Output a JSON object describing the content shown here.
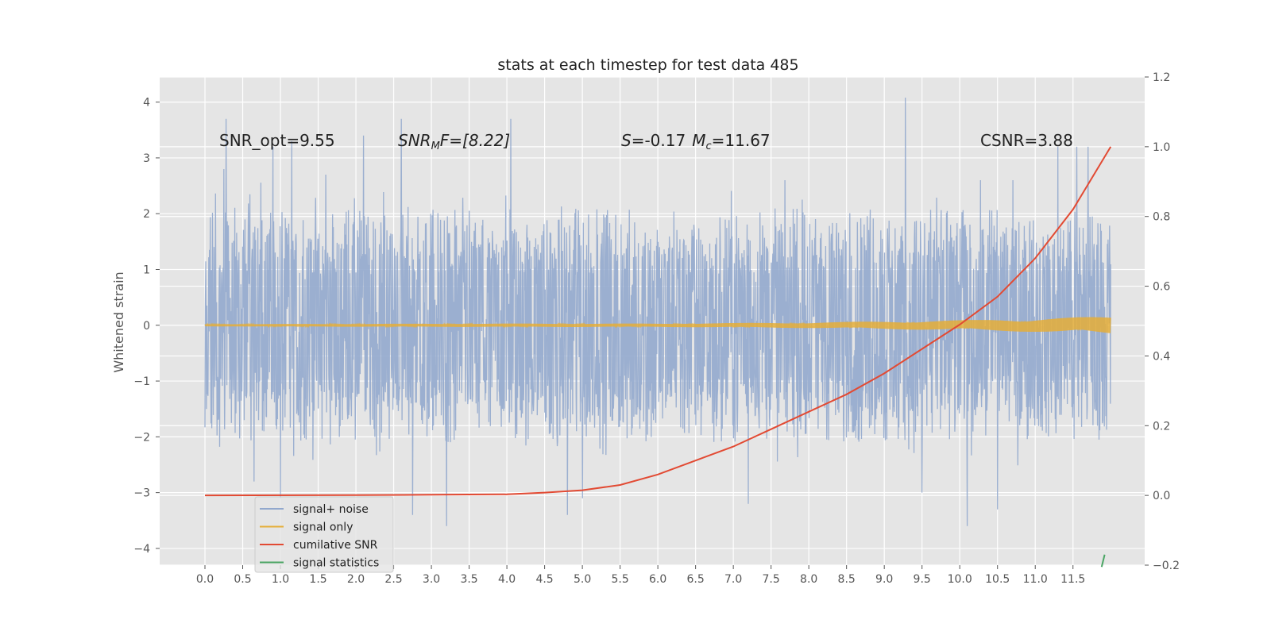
{
  "chart_data": {
    "type": "line",
    "title": "stats at each timestep for test data 485",
    "ylabel": "Whitened strain",
    "y2label": "",
    "xlim": [
      -0.6,
      12.45
    ],
    "ylim": [
      -4.3,
      4.45
    ],
    "y2lim": [
      -0.2,
      1.2
    ],
    "x_ticks": [
      0.0,
      0.5,
      1.0,
      1.5,
      2.0,
      2.5,
      3.0,
      3.5,
      4.0,
      4.5,
      5.0,
      5.5,
      6.0,
      6.5,
      7.0,
      7.5,
      8.0,
      8.5,
      9.0,
      9.5,
      10.0,
      10.5,
      11.0,
      11.5
    ],
    "x_tick_labels": [
      "0.0",
      "0.5",
      "1.0",
      "1.5",
      "2.0",
      "2.5",
      "3.0",
      "3.5",
      "4.0",
      "4.5",
      "5.0",
      "5.5",
      "6.0",
      "6.5",
      "7.0",
      "7.5",
      "8.0",
      "8.5",
      "9.0",
      "9.5",
      "10.0",
      "10.5",
      "11.0",
      "11.5"
    ],
    "y_ticks": [
      4,
      3,
      2,
      1,
      0,
      -1,
      -2,
      -3,
      -4
    ],
    "y_tick_labels": [
      "4",
      "3",
      "2",
      "1",
      "0",
      "−1",
      "−2",
      "−3",
      "−4"
    ],
    "y2_ticks": [
      1.2,
      1.0,
      0.8,
      0.6,
      0.4,
      0.2,
      0.0,
      -0.2
    ],
    "y2_tick_labels": [
      "1.2",
      "1.0",
      "0.8",
      "0.6",
      "0.4",
      "0.2",
      "0.0",
      "−0.2"
    ],
    "grid": true,
    "legend_position": "bottom-left",
    "annotations": {
      "snr_opt": "SNR_opt=9.55",
      "snr_mf_main": "SNR",
      "snr_mf_sub": "M",
      "snr_mf_rest": "F=[8.22]",
      "s_label": "S",
      "s_value": "=-0.17",
      "mc_label": "M",
      "mc_sub": "c",
      "mc_value": "=11.67",
      "csnr": "CSNR=3.88"
    },
    "series": [
      {
        "name": "signal+ noise",
        "axis": "left",
        "color": "#92a8cd",
        "style": "dense noise",
        "x_range": [
          0.0,
          12.0
        ],
        "typical_envelope": [
          -2.0,
          2.0
        ],
        "peaks": [
          [
            0.25,
            2.8
          ],
          [
            0.28,
            3.7
          ],
          [
            0.65,
            -2.8
          ],
          [
            0.9,
            3.2
          ],
          [
            1.0,
            -3.1
          ],
          [
            1.15,
            3.3
          ],
          [
            1.6,
            2.7
          ],
          [
            2.1,
            3.4
          ],
          [
            2.6,
            3.7
          ],
          [
            2.75,
            -3.4
          ],
          [
            3.2,
            -3.6
          ],
          [
            4.05,
            3.7
          ],
          [
            4.8,
            -3.4
          ],
          [
            5.0,
            -3.1
          ],
          [
            7.2,
            -3.2
          ],
          [
            9.28,
            4.08
          ],
          [
            9.5,
            -3.0
          ],
          [
            10.1,
            -3.6
          ],
          [
            10.5,
            -3.3
          ],
          [
            11.3,
            3.2
          ],
          [
            11.55,
            3.2
          ],
          [
            11.7,
            3.2
          ]
        ]
      },
      {
        "name": "signal only",
        "axis": "left",
        "color": "#e5ae38",
        "amplitude": [
          [
            0.0,
            0.02
          ],
          [
            4.0,
            0.03
          ],
          [
            6.0,
            0.03
          ],
          [
            8.0,
            0.05
          ],
          [
            10.0,
            0.09
          ],
          [
            11.0,
            0.12
          ],
          [
            12.0,
            0.16
          ]
        ]
      },
      {
        "name": "cumilative SNR",
        "axis": "right",
        "color": "#e24a33",
        "points": [
          [
            0.0,
            0.0
          ],
          [
            2.0,
            0.001
          ],
          [
            3.0,
            0.002
          ],
          [
            4.0,
            0.003
          ],
          [
            4.5,
            0.008
          ],
          [
            5.0,
            0.015
          ],
          [
            5.5,
            0.03
          ],
          [
            6.0,
            0.06
          ],
          [
            6.5,
            0.1
          ],
          [
            7.0,
            0.14
          ],
          [
            7.5,
            0.19
          ],
          [
            8.0,
            0.24
          ],
          [
            8.5,
            0.29
          ],
          [
            9.0,
            0.35
          ],
          [
            9.5,
            0.42
          ],
          [
            10.0,
            0.49
          ],
          [
            10.5,
            0.57
          ],
          [
            11.0,
            0.68
          ],
          [
            11.5,
            0.82
          ],
          [
            12.0,
            1.0
          ]
        ]
      },
      {
        "name": "signal statistics",
        "axis": "right",
        "color": "#348abd",
        "points": [
          [
            11.88,
            -0.205
          ],
          [
            11.92,
            -0.17
          ]
        ]
      }
    ]
  }
}
